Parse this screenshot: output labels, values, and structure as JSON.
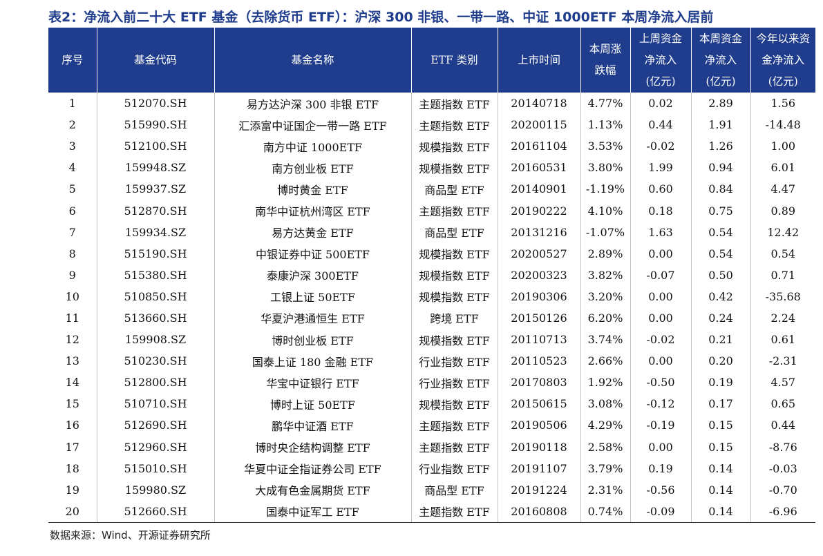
{
  "title": "表2：净流入前二十大 ETF 基金（去除货币 ETF）：沪深 300 非银、一带一路、中证 1000ETF 本周净流入居前",
  "header": {
    "no": "序号",
    "code": "基金代码",
    "name": "基金名称",
    "category": "ETF 类别",
    "listing_date": "上市时间",
    "weekly_change": [
      "本周涨",
      "跌幅"
    ],
    "last_week_inflow": [
      "上周资金",
      "净流入",
      "(亿元)"
    ],
    "this_week_inflow": [
      "本周资金",
      "净流入",
      "(亿元)"
    ],
    "ytd_inflow": [
      "今年以来资",
      "金净流入",
      "(亿元)"
    ]
  },
  "rows": [
    {
      "no": "1",
      "code": "512070.SH",
      "name": "易方达沪深 300 非银 ETF",
      "category": "主题指数 ETF",
      "date": "20140718",
      "change": "4.77%",
      "last": "0.02",
      "this": "2.89",
      "ytd": "1.56"
    },
    {
      "no": "2",
      "code": "515990.SH",
      "name": "汇添富中证国企一带一路 ETF",
      "category": "主题指数 ETF",
      "date": "20200115",
      "change": "1.13%",
      "last": "0.44",
      "this": "1.91",
      "ytd": "-14.48"
    },
    {
      "no": "3",
      "code": "512100.SH",
      "name": "南方中证 1000ETF",
      "category": "规模指数 ETF",
      "date": "20161104",
      "change": "3.53%",
      "last": "-0.02",
      "this": "1.26",
      "ytd": "1.00"
    },
    {
      "no": "4",
      "code": "159948.SZ",
      "name": "南方创业板 ETF",
      "category": "规模指数 ETF",
      "date": "20160531",
      "change": "3.80%",
      "last": "1.99",
      "this": "0.94",
      "ytd": "6.01"
    },
    {
      "no": "5",
      "code": "159937.SZ",
      "name": "博时黄金 ETF",
      "category": "商品型 ETF",
      "date": "20140901",
      "change": "-1.19%",
      "last": "0.60",
      "this": "0.84",
      "ytd": "4.47"
    },
    {
      "no": "6",
      "code": "512870.SH",
      "name": "南华中证杭州湾区 ETF",
      "category": "主题指数 ETF",
      "date": "20190222",
      "change": "4.10%",
      "last": "0.18",
      "this": "0.75",
      "ytd": "0.89"
    },
    {
      "no": "7",
      "code": "159934.SZ",
      "name": "易方达黄金 ETF",
      "category": "商品型 ETF",
      "date": "20131216",
      "change": "-1.07%",
      "last": "1.63",
      "this": "0.54",
      "ytd": "12.42"
    },
    {
      "no": "8",
      "code": "515190.SH",
      "name": "中银证券中证 500ETF",
      "category": "规模指数 ETF",
      "date": "20200527",
      "change": "2.89%",
      "last": "0.00",
      "this": "0.54",
      "ytd": "0.54"
    },
    {
      "no": "9",
      "code": "515380.SH",
      "name": "泰康沪深 300ETF",
      "category": "规模指数 ETF",
      "date": "20200323",
      "change": "3.82%",
      "last": "-0.07",
      "this": "0.50",
      "ytd": "0.71"
    },
    {
      "no": "10",
      "code": "510850.SH",
      "name": "工银上证 50ETF",
      "category": "规模指数 ETF",
      "date": "20190306",
      "change": "3.20%",
      "last": "0.00",
      "this": "0.42",
      "ytd": "-35.68"
    },
    {
      "no": "11",
      "code": "513660.SH",
      "name": "华夏沪港通恒生 ETF",
      "category": "跨境 ETF",
      "date": "20150126",
      "change": "6.20%",
      "last": "0.00",
      "this": "0.24",
      "ytd": "2.24"
    },
    {
      "no": "12",
      "code": "159908.SZ",
      "name": "博时创业板 ETF",
      "category": "规模指数 ETF",
      "date": "20110713",
      "change": "3.74%",
      "last": "-0.02",
      "this": "0.21",
      "ytd": "0.61"
    },
    {
      "no": "13",
      "code": "510230.SH",
      "name": "国泰上证 180 金融 ETF",
      "category": "行业指数 ETF",
      "date": "20110523",
      "change": "2.66%",
      "last": "0.00",
      "this": "0.20",
      "ytd": "-2.31"
    },
    {
      "no": "14",
      "code": "512800.SH",
      "name": "华宝中证银行 ETF",
      "category": "行业指数 ETF",
      "date": "20170803",
      "change": "1.92%",
      "last": "-0.50",
      "this": "0.19",
      "ytd": "4.57"
    },
    {
      "no": "15",
      "code": "510710.SH",
      "name": "博时上证 50ETF",
      "category": "规模指数 ETF",
      "date": "20150615",
      "change": "3.08%",
      "last": "-0.12",
      "this": "0.17",
      "ytd": "0.65"
    },
    {
      "no": "16",
      "code": "512690.SH",
      "name": "鹏华中证酒 ETF",
      "category": "主题指数 ETF",
      "date": "20190506",
      "change": "4.29%",
      "last": "-0.19",
      "this": "0.15",
      "ytd": "0.44"
    },
    {
      "no": "17",
      "code": "512960.SH",
      "name": "博时央企结构调整 ETF",
      "category": "主题指数 ETF",
      "date": "20190118",
      "change": "2.58%",
      "last": "0.00",
      "this": "0.15",
      "ytd": "-8.76"
    },
    {
      "no": "18",
      "code": "515010.SH",
      "name": "华夏中证全指证券公司 ETF",
      "category": "行业指数 ETF",
      "date": "20191107",
      "change": "3.79%",
      "last": "0.19",
      "this": "0.14",
      "ytd": "-0.03"
    },
    {
      "no": "19",
      "code": "159980.SZ",
      "name": "大成有色金属期货 ETF",
      "category": "商品型 ETF",
      "date": "20191224",
      "change": "2.31%",
      "last": "-0.56",
      "this": "0.14",
      "ytd": "-0.70"
    },
    {
      "no": "20",
      "code": "512660.SH",
      "name": "国泰中证军工 ETF",
      "category": "主题指数 ETF",
      "date": "20160808",
      "change": "0.74%",
      "last": "-0.09",
      "this": "0.14",
      "ytd": "-6.96"
    }
  ],
  "source": "数据来源：Wind、开源证券研究所",
  "colors": {
    "header_bg": "#1f3d8c",
    "title": "#1f3d8c"
  }
}
